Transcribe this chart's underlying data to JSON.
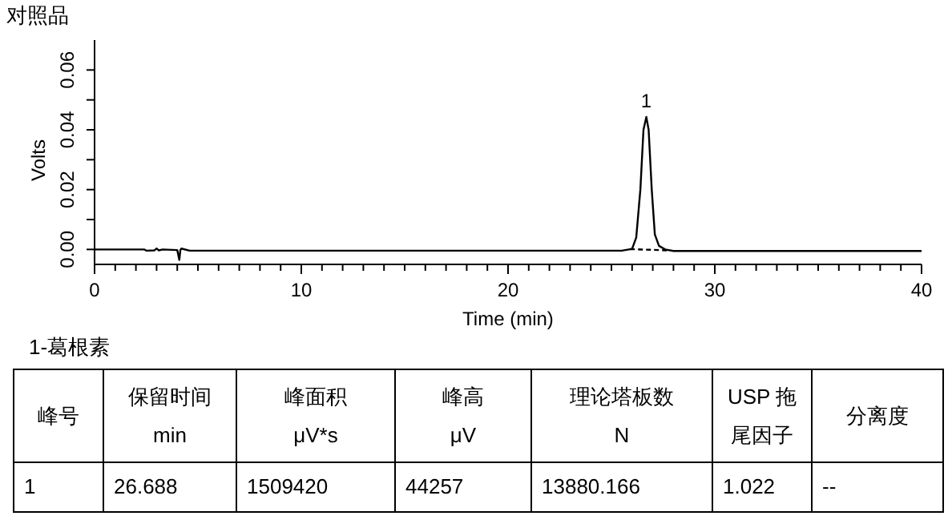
{
  "chart_data": {
    "type": "line",
    "title": "对照品",
    "xlabel": "Time (min)",
    "ylabel": "Volts",
    "xlim": [
      0,
      40
    ],
    "ylim": [
      -0.005,
      0.07
    ],
    "xticks": [
      0,
      {
        "value": 1,
        "label": null
      },
      {
        "value": 2,
        "label": null
      },
      {
        "value": 3,
        "label": null
      },
      {
        "value": 4,
        "label": null
      },
      {
        "value": 5,
        "label": null
      },
      {
        "value": 6,
        "label": null
      },
      {
        "value": 7,
        "label": null
      },
      {
        "value": 8,
        "label": null
      },
      {
        "value": 9,
        "label": null
      },
      10,
      {
        "value": 11,
        "label": null
      },
      {
        "value": 12,
        "label": null
      },
      {
        "value": 13,
        "label": null
      },
      {
        "value": 14,
        "label": null
      },
      {
        "value": 15,
        "label": null
      },
      {
        "value": 16,
        "label": null
      },
      {
        "value": 17,
        "label": null
      },
      {
        "value": 18,
        "label": null
      },
      {
        "value": 19,
        "label": null
      },
      20,
      {
        "value": 21,
        "label": null
      },
      {
        "value": 22,
        "label": null
      },
      {
        "value": 23,
        "label": null
      },
      {
        "value": 24,
        "label": null
      },
      {
        "value": 25,
        "label": null
      },
      {
        "value": 26,
        "label": null
      },
      {
        "value": 27,
        "label": null
      },
      {
        "value": 28,
        "label": null
      },
      {
        "value": 29,
        "label": null
      },
      30,
      {
        "value": 31,
        "label": null
      },
      {
        "value": 32,
        "label": null
      },
      {
        "value": 33,
        "label": null
      },
      {
        "value": 34,
        "label": null
      },
      {
        "value": 35,
        "label": null
      },
      {
        "value": 36,
        "label": null
      },
      {
        "value": 37,
        "label": null
      },
      {
        "value": 38,
        "label": null
      },
      {
        "value": 39,
        "label": null
      },
      40
    ],
    "yticks": [
      {
        "value": 0,
        "label": "0.00"
      },
      {
        "value": 0.01,
        "label": null
      },
      {
        "value": 0.02,
        "label": "0.02"
      },
      {
        "value": 0.03,
        "label": null
      },
      {
        "value": 0.04,
        "label": "0.04"
      },
      {
        "value": 0.05,
        "label": null
      },
      {
        "value": 0.06,
        "label": "0.06"
      }
    ],
    "series": [
      {
        "color": "#000000",
        "line_style": "solid",
        "x": [
          0,
          2.4,
          2.5,
          2.9,
          3.0,
          3.1,
          3.3,
          4.0,
          4.1,
          4.15,
          4.2,
          4.6,
          10,
          20,
          25.5,
          26.0,
          26.2,
          26.4,
          26.55,
          26.688,
          26.8,
          26.95,
          27.1,
          27.3,
          27.6,
          28,
          35,
          40
        ],
        "values": [
          0,
          0,
          -0.0004,
          -0.0003,
          0.0003,
          -0.0003,
          0,
          -0.0002,
          -0.0035,
          -0.0002,
          0.0003,
          -0.0004,
          -0.0004,
          -0.0004,
          -0.0004,
          0.0002,
          0.004,
          0.02,
          0.04,
          0.0443,
          0.04,
          0.02,
          0.005,
          0.0012,
          0,
          -0.0005,
          -0.0005,
          -0.0005
        ]
      },
      {
        "color": "#000000",
        "line_style": "dashed",
        "x": [
          25.9,
          27.7
        ],
        "values": [
          0.0001,
          -0.0003
        ]
      }
    ],
    "annotations": [
      {
        "text": "1",
        "x": 26.688,
        "y": 0.0443
      },
      "1-葛根素",
      "峰号",
      "保留时间\nmin",
      "峰面积\nμV*s",
      "峰高\nμV",
      "理论塔板数\nN",
      "USP 拖尾因子",
      "分离度",
      "1",
      "26.688",
      "1509420",
      "44257",
      "13880.166",
      "1.022",
      "--"
    ]
  }
}
